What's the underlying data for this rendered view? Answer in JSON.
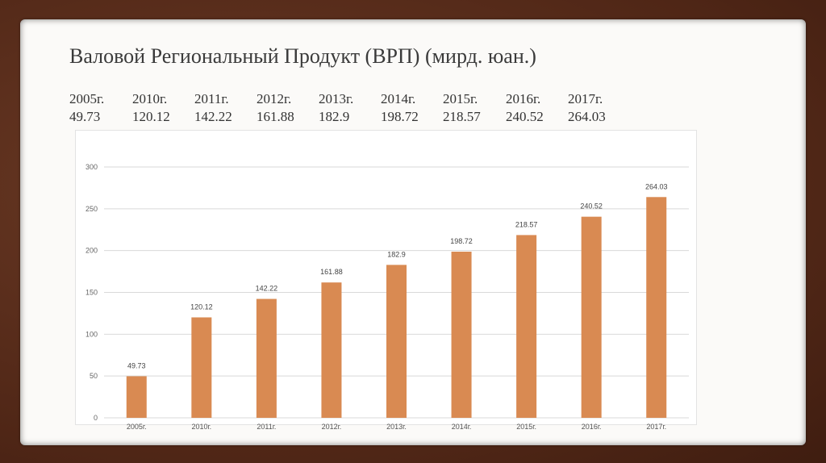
{
  "slide": {
    "title": "Валовой Региональный Продукт (ВРП) (мирд. юан.)"
  },
  "table": {
    "years": [
      "2005г.",
      "2010г.",
      "2011г.",
      "2012г.",
      "2013г.",
      "2014г.",
      "2015г.",
      "2016г.",
      "2017г."
    ],
    "values": [
      "49.73",
      "120.12",
      "142.22",
      "161.88",
      "182.9",
      "198.72",
      "218.57",
      "240.52",
      "264.03"
    ]
  },
  "chart_data": {
    "type": "bar",
    "categories": [
      "2005г.",
      "2010г.",
      "2011г.",
      "2012г.",
      "2013г.",
      "2014г.",
      "2015г.",
      "2016г.",
      "2017г."
    ],
    "values": [
      49.73,
      120.12,
      142.22,
      161.88,
      182.9,
      198.72,
      218.57,
      240.52,
      264.03
    ],
    "value_labels": [
      "49.73",
      "120.12",
      "142.22",
      "161.88",
      "182.9",
      "198.72",
      "218.57",
      "240.52",
      "264.03"
    ],
    "yticks": [
      "0",
      "50",
      "100",
      "150",
      "200",
      "250",
      "300"
    ],
    "ylim": [
      0,
      300
    ],
    "grid": true,
    "bar_color": "#d98a52",
    "title": "",
    "xlabel": "",
    "ylabel": ""
  }
}
